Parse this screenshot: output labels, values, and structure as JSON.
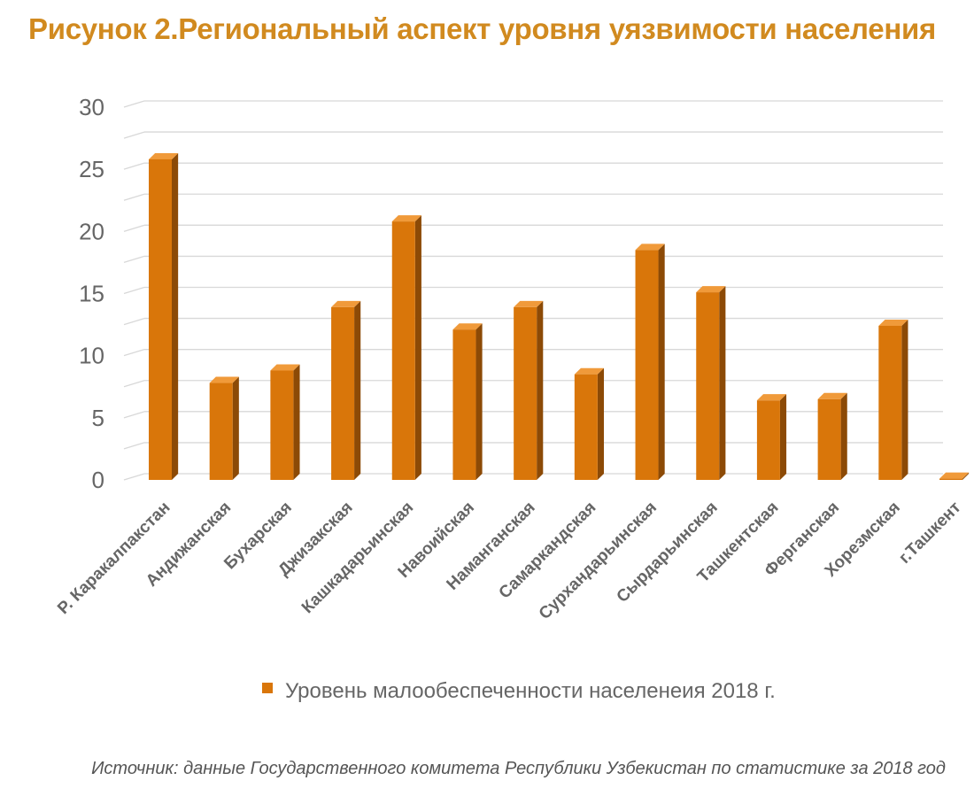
{
  "title": "Рисунок 2.Региональный аспект уровня уязвимости населения",
  "source": "Источник: данные Государственного комитета Республики Узбекистан по статистике за 2018 год",
  "colors": {
    "bar_front": "#d9760a",
    "bar_side": "#8c4a06",
    "bar_top": "#f09a3a",
    "title": "#d18a1f",
    "grid": "#d8d8d8",
    "axis_text": "#666666"
  },
  "chart_data": {
    "type": "bar",
    "title": "",
    "xlabel": "",
    "ylabel": "",
    "ylim": [
      0,
      30
    ],
    "yticks": [
      0,
      5,
      10,
      15,
      20,
      25,
      30
    ],
    "grid": true,
    "legend_position": "bottom",
    "categories": [
      "Р. Каракалпакстан",
      "Андижанская",
      "Бухарская",
      "Джизакская",
      "Кашкадарьинская",
      "Навоийская",
      "Наманганская",
      "Самаркандская",
      "Сурхандарьинская",
      "Сырдарьинская",
      "Ташкентская",
      "Ферганская",
      "Хорезмская",
      "г.Ташкент"
    ],
    "series": [
      {
        "name": "Уровень малообеспеченности населенеия 2018 г.",
        "values": [
          25.8,
          7.8,
          8.8,
          13.9,
          20.8,
          12.1,
          13.9,
          8.5,
          18.5,
          15.1,
          6.4,
          6.5,
          12.4,
          0.1
        ]
      }
    ]
  }
}
